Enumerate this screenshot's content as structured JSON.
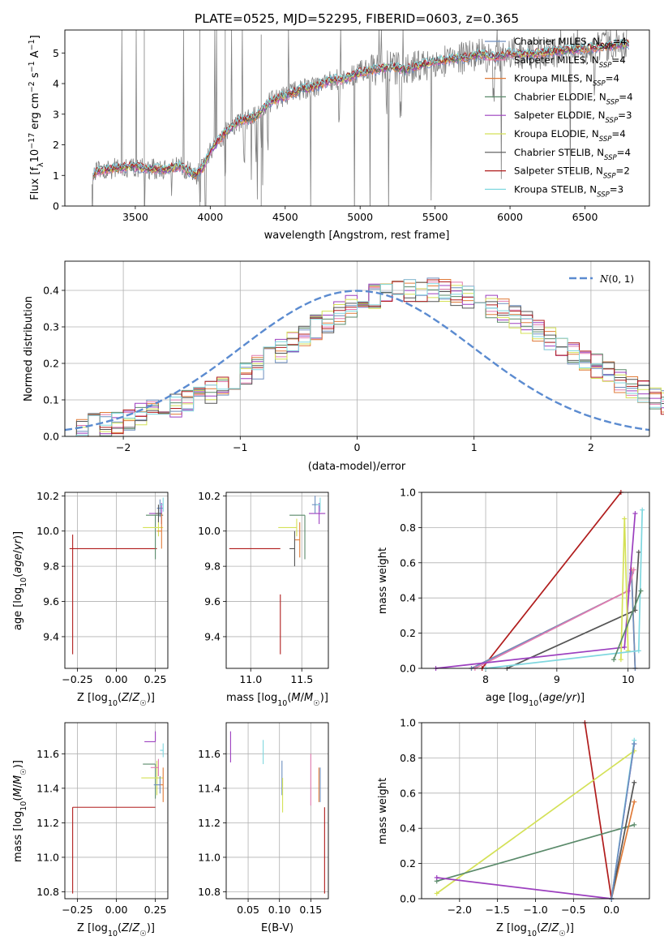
{
  "colors": {
    "Chabrier MILES": "#6c8ebf",
    "Salpeter MILES": "#e27bb0",
    "Kroupa MILES": "#e07b39",
    "Chabrier ELODIE": "#5a8a6a",
    "Salpeter ELODIE": "#9c3fbf",
    "Kroupa ELODIE": "#d4e157",
    "Chabrier STELIB": "#555555",
    "Salpeter STELIB": "#b01c1c",
    "Kroupa STELIB": "#7fd7df",
    "data": "#808080",
    "normal": "#5b8bd0"
  },
  "chart_data": [
    {
      "id": "spectrum",
      "type": "line",
      "title": "PLATE=0525, MJD=52295, FIBERID=0603, z=0.365",
      "xlabel": "wavelength [Angstrom, rest frame]",
      "ylabel": "Flux [f_λ 10^-17 erg cm^-2 s^-1 A^-1]",
      "xlim": [
        3030,
        6930
      ],
      "ylim": [
        0,
        5.75
      ],
      "xticks": [
        "3500",
        "4000",
        "4500",
        "5000",
        "5500",
        "6000",
        "6500"
      ],
      "yticks": [
        "0",
        "1",
        "2",
        "3",
        "4",
        "5"
      ],
      "continuum": {
        "x": [
          3200,
          3250,
          3300,
          3400,
          3500,
          3600,
          3700,
          3800,
          3900,
          3950,
          4000,
          4050,
          4100,
          4200,
          4300,
          4400,
          4500,
          4600,
          4700,
          4800,
          4900,
          5000,
          5100,
          5200,
          5300,
          5400,
          5500,
          5600,
          5700,
          5800,
          5900,
          6000,
          6100,
          6200,
          6300,
          6400,
          6500,
          6600,
          6700,
          6780
        ],
        "y": [
          0.95,
          1.15,
          1.2,
          1.25,
          1.28,
          1.2,
          1.2,
          1.3,
          1.0,
          1.25,
          1.8,
          2.1,
          2.4,
          2.8,
          2.9,
          3.4,
          3.6,
          3.8,
          3.9,
          4.1,
          4.15,
          4.35,
          4.45,
          4.55,
          4.45,
          4.6,
          4.7,
          4.8,
          4.85,
          4.95,
          4.85,
          5.0,
          4.95,
          5.0,
          5.05,
          5.1,
          5.15,
          5.2,
          5.25,
          5.3
        ]
      },
      "legend": [
        {
          "label": "Chabrier MILES, N",
          "nssp": "=4",
          "color": "#6c8ebf"
        },
        {
          "label": "Salpeter MILES, N",
          "nssp": "=4",
          "color": "#e27bb0"
        },
        {
          "label": "Kroupa MILES, N",
          "nssp": "=4",
          "color": "#e07b39"
        },
        {
          "label": "Chabrier ELODIE, N",
          "nssp": "=4",
          "color": "#5a8a6a"
        },
        {
          "label": "Salpeter ELODIE, N",
          "nssp": "=3",
          "color": "#9c3fbf"
        },
        {
          "label": "Kroupa ELODIE, N",
          "nssp": "=4",
          "color": "#d4e157"
        },
        {
          "label": "Chabrier STELIB, N",
          "nssp": "=4",
          "color": "#555555"
        },
        {
          "label": "Salpeter STELIB, N",
          "nssp": "=2",
          "color": "#b01c1c"
        },
        {
          "label": "Kroupa STELIB, N",
          "nssp": "=3",
          "color": "#7fd7df"
        }
      ]
    },
    {
      "id": "residuals",
      "type": "histogram",
      "xlabel": "(data-model)/error",
      "ylabel": "Normed distribution",
      "xlim": [
        -2.5,
        2.5
      ],
      "ylim": [
        0,
        0.48
      ],
      "xticks": [
        "−2",
        "−1",
        "0",
        "1",
        "2"
      ],
      "yticks": [
        "0.0",
        "0.1",
        "0.2",
        "0.3",
        "0.4"
      ],
      "bin_width": 0.1,
      "base": [
        0.018,
        0.022,
        0.028,
        0.034,
        0.04,
        0.048,
        0.056,
        0.066,
        0.077,
        0.088,
        0.1,
        0.112,
        0.125,
        0.14,
        0.156,
        0.173,
        0.19,
        0.21,
        0.232,
        0.255,
        0.275,
        0.298,
        0.318,
        0.338,
        0.355,
        0.372,
        0.385,
        0.393,
        0.398,
        0.4,
        0.401,
        0.4,
        0.397,
        0.392,
        0.384,
        0.373,
        0.36,
        0.345,
        0.328,
        0.31,
        0.292,
        0.272,
        0.252,
        0.232,
        0.212,
        0.192,
        0.172,
        0.153,
        0.136,
        0.12,
        0.105,
        0.093,
        0.082,
        0.072,
        0.063,
        0.056,
        0.05,
        0.045,
        0.041,
        0.038
      ],
      "normal_label": "N(0,1)"
    },
    {
      "id": "Z_vs_age",
      "type": "errorbar",
      "xlabel": "Z [log10(Z/Z☉)]",
      "ylabel": "age  [log10(age/yr)]",
      "xlim": [
        -0.33,
        0.33
      ],
      "ylim": [
        9.22,
        10.22
      ],
      "xticks": [
        -0.25,
        0.0,
        0.25
      ],
      "xtick_labels": [
        "−0.25",
        "0.00",
        "0.25"
      ],
      "yticks": [
        9.4,
        9.6,
        9.8,
        10.0,
        10.2
      ],
      "ytick_labels": [
        "9.4",
        "9.6",
        "9.8",
        "10.0",
        "10.2"
      ],
      "points": [
        {
          "model": "Salpeter STELIB",
          "x": 0.26,
          "xerr": [
            0.56,
            0.0
          ],
          "y": 9.9,
          "yerr": [
            0.0,
            0.0
          ]
        },
        {
          "model": "Salpeter STELIB",
          "x": -0.28,
          "xerr": [
            0.0,
            0.0
          ],
          "y": 9.64,
          "yerr": [
            0.34,
            0.34
          ]
        },
        {
          "model": "Chabrier ELODIE",
          "x": 0.25,
          "xerr": [
            0.06,
            0.05
          ],
          "y": 10.09,
          "yerr": [
            0.25,
            0.0
          ]
        },
        {
          "model": "Kroupa ELODIE",
          "x": 0.27,
          "xerr": [
            0.1,
            0.03
          ],
          "y": 10.02,
          "yerr": [
            0.05,
            0.05
          ]
        },
        {
          "model": "Salpeter ELODIE",
          "x": 0.29,
          "xerr": [
            0.08,
            0.0
          ],
          "y": 10.1,
          "yerr": [
            0.06,
            0.06
          ]
        },
        {
          "model": "Chabrier MILES",
          "x": 0.28,
          "xerr": [
            0.02,
            0.02
          ],
          "y": 10.13,
          "yerr": [
            0.05,
            0.05
          ]
        },
        {
          "model": "Kroupa MILES",
          "x": 0.29,
          "xerr": [
            0.03,
            0.0
          ],
          "y": 10.0,
          "yerr": [
            0.1,
            0.1
          ]
        },
        {
          "model": "Kroupa STELIB",
          "x": 0.3,
          "xerr": [
            0.02,
            0.0
          ],
          "y": 10.15,
          "yerr": [
            0.04,
            0.04
          ]
        },
        {
          "model": "Chabrier STELIB",
          "x": 0.27,
          "xerr": [
            0.02,
            0.02
          ],
          "y": 10.1,
          "yerr": [
            0.05,
            0.05
          ]
        }
      ]
    },
    {
      "id": "mass_vs_age",
      "type": "errorbar",
      "xlabel": "mass [log10(M/M☉)]",
      "ylabel": "",
      "xlim": [
        10.76,
        11.76
      ],
      "ylim": [
        9.22,
        10.22
      ],
      "xticks": [
        11.0,
        11.5
      ],
      "xtick_labels": [
        "11.0",
        "11.5"
      ],
      "yticks": [
        9.4,
        9.6,
        9.8,
        10.0,
        10.2
      ],
      "ytick_labels": [
        "9.4",
        "9.6",
        "9.8",
        "10.0",
        "10.2"
      ],
      "points": [
        {
          "model": "Salpeter STELIB",
          "x": 11.29,
          "xerr": [
            0.5,
            0.0
          ],
          "y": 9.9,
          "yerr": [
            0.0,
            0.0
          ]
        },
        {
          "model": "Salpeter STELIB",
          "x": 11.29,
          "xerr": [
            0.0,
            0.0
          ],
          "y": 9.64,
          "yerr": [
            0.34,
            0.0
          ]
        },
        {
          "model": "Chabrier ELODIE",
          "x": 11.53,
          "xerr": [
            0.15,
            0.0
          ],
          "y": 10.09,
          "yerr": [
            0.25,
            0.0
          ]
        },
        {
          "model": "Kroupa ELODIE",
          "x": 11.45,
          "xerr": [
            0.18,
            0.0
          ],
          "y": 10.02,
          "yerr": [
            0.05,
            0.05
          ]
        },
        {
          "model": "Salpeter ELODIE",
          "x": 11.67,
          "xerr": [
            0.1,
            0.06
          ],
          "y": 10.1,
          "yerr": [
            0.06,
            0.06
          ]
        },
        {
          "model": "Chabrier MILES",
          "x": 11.63,
          "xerr": [
            0.03,
            0.03
          ],
          "y": 10.15,
          "yerr": [
            0.05,
            0.05
          ]
        },
        {
          "model": "Kroupa MILES",
          "x": 11.48,
          "xerr": [
            0.05,
            0.0
          ],
          "y": 9.95,
          "yerr": [
            0.1,
            0.1
          ]
        },
        {
          "model": "Kroupa STELIB",
          "x": 11.68,
          "xerr": [
            0.04,
            0.0
          ],
          "y": 10.15,
          "yerr": [
            0.04,
            0.04
          ]
        },
        {
          "model": "Chabrier STELIB",
          "x": 11.43,
          "xerr": [
            0.05,
            0.0
          ],
          "y": 9.9,
          "yerr": [
            0.1,
            0.1
          ]
        }
      ]
    },
    {
      "id": "age_vs_weight",
      "type": "line",
      "xlabel": "age  [log10(age/yr)]",
      "ylabel": "mass weight",
      "xlim": [
        7.1,
        10.3
      ],
      "ylim": [
        0,
        1
      ],
      "xticks": [
        8,
        9,
        10
      ],
      "xtick_labels": [
        "8",
        "9",
        "10"
      ],
      "yticks": [
        0,
        0.2,
        0.4,
        0.6,
        0.8,
        1.0
      ],
      "ytick_labels": [
        "0.0",
        "0.2",
        "0.4",
        "0.6",
        "0.8",
        "1.0"
      ],
      "series": [
        {
          "model": "Salpeter STELIB",
          "x": [
            7.95,
            9.9
          ],
          "y": [
            0.0,
            1.0
          ]
        },
        {
          "model": "Kroupa MILES",
          "x": [
            7.8,
            10.0,
            10.05,
            10.1
          ],
          "y": [
            0.0,
            0.44,
            0.56,
            0.0
          ]
        },
        {
          "model": "Chabrier MILES",
          "x": [
            7.8,
            10.0,
            10.05,
            10.1
          ],
          "y": [
            0.0,
            0.44,
            0.54,
            0.0
          ]
        },
        {
          "model": "Salpeter MILES",
          "x": [
            7.85,
            10.0,
            10.08
          ],
          "y": [
            0.0,
            0.44,
            0.56
          ]
        },
        {
          "model": "Chabrier STELIB",
          "x": [
            8.3,
            10.1,
            10.15
          ],
          "y": [
            0.0,
            0.33,
            0.66
          ]
        },
        {
          "model": "Salpeter ELODIE",
          "x": [
            7.3,
            9.95,
            10.1
          ],
          "y": [
            0.0,
            0.12,
            0.88
          ]
        },
        {
          "model": "Kroupa ELODIE",
          "x": [
            9.9,
            9.95,
            10.0
          ],
          "y": [
            0.05,
            0.85,
            0.1
          ]
        },
        {
          "model": "Kroupa STELIB",
          "x": [
            8.0,
            10.15,
            10.2
          ],
          "y": [
            0.0,
            0.1,
            0.9
          ]
        },
        {
          "model": "Chabrier ELODIE",
          "x": [
            9.8,
            10.18
          ],
          "y": [
            0.05,
            0.44
          ]
        }
      ]
    },
    {
      "id": "Z_vs_mass",
      "type": "errorbar",
      "xlabel": "Z [log10(Z/Z☉)]",
      "ylabel": "mass [log10(M/M☉)]",
      "xlim": [
        -0.33,
        0.33
      ],
      "ylim": [
        10.76,
        11.78
      ],
      "xticks": [
        -0.25,
        0.0,
        0.25
      ],
      "xtick_labels": [
        "−0.25",
        "0.00",
        "0.25"
      ],
      "yticks": [
        10.8,
        11.0,
        11.2,
        11.4,
        11.6
      ],
      "ytick_labels": [
        "10.8",
        "11.0",
        "11.2",
        "11.4",
        "11.6"
      ],
      "points": [
        {
          "model": "Salpeter STELIB",
          "x": 0.25,
          "xerr": [
            0.53,
            0.0
          ],
          "y": 11.29,
          "yerr": [
            0.0,
            0.0
          ]
        },
        {
          "model": "Salpeter STELIB",
          "x": -0.28,
          "xerr": [
            0.0,
            0.0
          ],
          "y": 11.04,
          "yerr": [
            0.25,
            0.25
          ]
        },
        {
          "model": "Chabrier ELODIE",
          "x": 0.25,
          "xerr": [
            0.08,
            0.0
          ],
          "y": 11.54,
          "yerr": [
            0.2,
            0.0
          ]
        },
        {
          "model": "Salpeter ELODIE",
          "x": 0.25,
          "xerr": [
            0.07,
            0.0
          ],
          "y": 11.67,
          "yerr": [
            0.0,
            0.06
          ]
        },
        {
          "model": "Kroupa ELODIE",
          "x": 0.26,
          "xerr": [
            0.1,
            0.04
          ],
          "y": 11.46,
          "yerr": [
            0.1,
            0.1
          ]
        },
        {
          "model": "Salpeter MILES",
          "x": 0.27,
          "xerr": [
            0.05,
            0.0
          ],
          "y": 11.52,
          "yerr": [
            0.05,
            0.05
          ]
        },
        {
          "model": "Kroupa MILES",
          "x": 0.3,
          "xerr": [
            0.03,
            0.0
          ],
          "y": 11.42,
          "yerr": [
            0.1,
            0.1
          ]
        },
        {
          "model": "Chabrier MILES",
          "x": 0.28,
          "xerr": [
            0.04,
            0.0
          ],
          "y": 11.42,
          "yerr": [
            0.05,
            0.05
          ]
        },
        {
          "model": "Kroupa STELIB",
          "x": 0.3,
          "xerr": [
            0.02,
            0.0
          ],
          "y": 11.62,
          "yerr": [
            0.04,
            0.04
          ]
        }
      ]
    },
    {
      "id": "ebv_vs_mass",
      "type": "errorbar",
      "xlabel": "E(B-V)",
      "ylabel": "",
      "xlim": [
        0.015,
        0.178
      ],
      "ylim": [
        10.76,
        11.78
      ],
      "xticks": [
        0.05,
        0.1,
        0.15
      ],
      "xtick_labels": [
        "0.05",
        "0.10",
        "0.15"
      ],
      "yticks": [
        10.8,
        11.0,
        11.2,
        11.4,
        11.6
      ],
      "ytick_labels": [
        "10.8",
        "11.0",
        "11.2",
        "11.4",
        "11.6"
      ],
      "points": [
        {
          "model": "Salpeter ELODIE",
          "x": 0.022,
          "y": 11.64,
          "yerr": [
            0.09,
            0.09
          ]
        },
        {
          "model": "Kroupa STELIB",
          "x": 0.074,
          "y": 11.61,
          "yerr": [
            0.07,
            0.07
          ]
        },
        {
          "model": "Chabrier MILES",
          "x": 0.104,
          "y": 11.46,
          "yerr": [
            0.1,
            0.1
          ]
        },
        {
          "model": "Kroupa ELODIE",
          "x": 0.105,
          "y": 11.36,
          "yerr": [
            0.1,
            0.1
          ]
        },
        {
          "model": "Salpeter MILES",
          "x": 0.15,
          "y": 11.45,
          "yerr": [
            0.15,
            0.15
          ]
        },
        {
          "model": "Kroupa MILES",
          "x": 0.163,
          "y": 11.42,
          "yerr": [
            0.1,
            0.1
          ]
        },
        {
          "model": "Chabrier MILES",
          "x": 0.165,
          "y": 11.42,
          "yerr": [
            0.1,
            0.1
          ]
        },
        {
          "model": "Salpeter STELIB",
          "x": 0.172,
          "y": 11.04,
          "yerr": [
            0.25,
            0.25
          ]
        }
      ]
    },
    {
      "id": "Z_vs_weight",
      "type": "line",
      "xlabel": "Z [log10(Z/Z☉)]",
      "ylabel": "mass weight",
      "xlim": [
        -2.5,
        0.5
      ],
      "ylim": [
        0,
        1
      ],
      "xticks": [
        -2.0,
        -1.5,
        -1.0,
        -0.5,
        0.0
      ],
      "xtick_labels": [
        "−2.0",
        "−1.5",
        "−1.0",
        "−0.5",
        "0.0"
      ],
      "yticks": [
        0,
        0.2,
        0.4,
        0.6,
        0.8,
        1.0
      ],
      "ytick_labels": [
        "0.0",
        "0.2",
        "0.4",
        "0.6",
        "0.8",
        "1.0"
      ],
      "series": [
        {
          "model": "Salpeter STELIB",
          "x": [
            -0.35,
            0.0
          ],
          "y": [
            1.0,
            0.0
          ]
        },
        {
          "model": "Kroupa ELODIE",
          "x": [
            -2.3,
            0.3
          ],
          "y": [
            0.03,
            0.84
          ]
        },
        {
          "model": "Chabrier ELODIE",
          "x": [
            -2.3,
            0.3
          ],
          "y": [
            0.1,
            0.42
          ]
        },
        {
          "model": "Salpeter ELODIE",
          "x": [
            -2.3,
            0.0,
            0.3
          ],
          "y": [
            0.12,
            0.0,
            0.88
          ]
        },
        {
          "model": "Kroupa MILES",
          "x": [
            0.0,
            0.3
          ],
          "y": [
            0.0,
            0.55
          ]
        },
        {
          "model": "Chabrier STELIB",
          "x": [
            0.0,
            0.3
          ],
          "y": [
            0.0,
            0.66
          ]
        },
        {
          "model": "Kroupa STELIB",
          "x": [
            0.0,
            0.3
          ],
          "y": [
            0.0,
            0.9
          ]
        },
        {
          "model": "Chabrier MILES",
          "x": [
            0.0,
            0.3
          ],
          "y": [
            0.0,
            0.88
          ]
        }
      ]
    }
  ]
}
